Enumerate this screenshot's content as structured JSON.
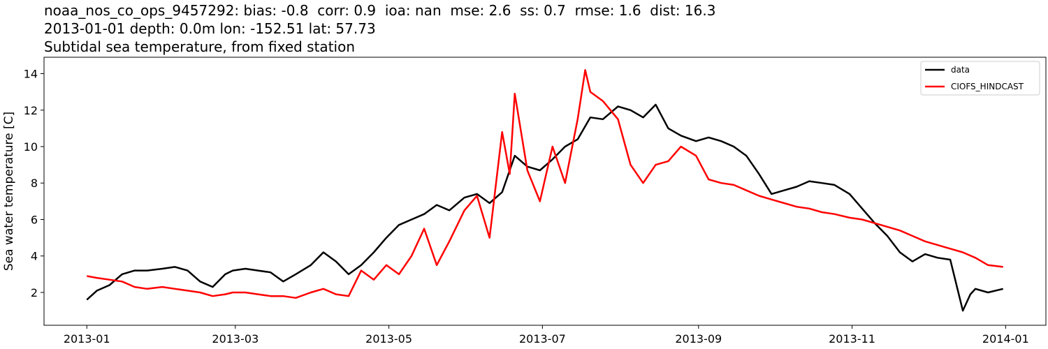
{
  "title_lines": [
    "noaa_nos_co_ops_9457292: bias: -0.8  corr: 0.9  ioa: nan  mse: 2.6  ss: 0.7  rmse: 1.6  dist: 16.3",
    "2013-01-01 depth: 0.0m lon: -152.51 lat: 57.73",
    "Subtidal sea temperature, from fixed station"
  ],
  "chart_data": {
    "type": "line",
    "title": "noaa_nos_co_ops_9457292: bias: -0.8  corr: 0.9  ioa: nan  mse: 2.6  ss: 0.7  rmse: 1.6  dist: 16.3 / 2013-01-01 depth: 0.0m lon: -152.51 lat: 57.73 / Subtidal sea temperature, from fixed station",
    "xlabel": "",
    "ylabel": "Sea water temperature [C]",
    "x_type": "date",
    "xlim": [
      "2012-12-15",
      "2014-01-17"
    ],
    "ylim": [
      0.2,
      14.9
    ],
    "x_ticks": [
      "2013-01",
      "2013-03",
      "2013-05",
      "2013-07",
      "2013-09",
      "2013-11",
      "2014-01"
    ],
    "y_ticks": [
      2,
      4,
      6,
      8,
      10,
      12,
      14
    ],
    "grid": false,
    "legend_position": "top-right",
    "series": [
      {
        "name": "data",
        "color": "#000000",
        "x": [
          "2013-01-01",
          "2013-01-05",
          "2013-01-10",
          "2013-01-15",
          "2013-01-20",
          "2013-01-25",
          "2013-01-31",
          "2013-02-05",
          "2013-02-10",
          "2013-02-15",
          "2013-02-20",
          "2013-02-25",
          "2013-02-28",
          "2013-03-05",
          "2013-03-10",
          "2013-03-15",
          "2013-03-20",
          "2013-03-25",
          "2013-03-31",
          "2013-04-05",
          "2013-04-10",
          "2013-04-15",
          "2013-04-20",
          "2013-04-25",
          "2013-04-30",
          "2013-05-05",
          "2013-05-10",
          "2013-05-15",
          "2013-05-20",
          "2013-05-25",
          "2013-05-31",
          "2013-06-05",
          "2013-06-10",
          "2013-06-15",
          "2013-06-20",
          "2013-06-25",
          "2013-06-30",
          "2013-07-05",
          "2013-07-10",
          "2013-07-15",
          "2013-07-20",
          "2013-07-25",
          "2013-07-31",
          "2013-08-05",
          "2013-08-10",
          "2013-08-15",
          "2013-08-20",
          "2013-08-25",
          "2013-08-31",
          "2013-09-05",
          "2013-09-10",
          "2013-09-15",
          "2013-09-20",
          "2013-09-25",
          "2013-09-30",
          "2013-10-05",
          "2013-10-10",
          "2013-10-15",
          "2013-10-20",
          "2013-10-25",
          "2013-10-31",
          "2013-11-05",
          "2013-11-10",
          "2013-11-15",
          "2013-11-20",
          "2013-11-25",
          "2013-11-30",
          "2013-12-05",
          "2013-12-10",
          "2013-12-15",
          "2013-12-18",
          "2013-12-20",
          "2013-12-25",
          "2013-12-31"
        ],
        "y": [
          1.6,
          2.1,
          2.4,
          3.0,
          3.2,
          3.2,
          3.3,
          3.4,
          3.2,
          2.6,
          2.3,
          3.0,
          3.2,
          3.3,
          3.2,
          3.1,
          2.6,
          3.0,
          3.5,
          4.2,
          3.7,
          3.0,
          3.5,
          4.2,
          5.0,
          5.7,
          6.0,
          6.3,
          6.8,
          6.5,
          7.2,
          7.4,
          6.9,
          7.5,
          9.5,
          8.9,
          8.7,
          9.3,
          10.0,
          10.4,
          11.6,
          11.5,
          12.2,
          12.0,
          11.6,
          12.3,
          11.0,
          10.6,
          10.3,
          10.5,
          10.3,
          10.0,
          9.5,
          8.5,
          7.4,
          7.6,
          7.8,
          8.1,
          8.0,
          7.9,
          7.4,
          6.6,
          5.8,
          5.1,
          4.2,
          3.7,
          4.1,
          3.9,
          3.8,
          1.0,
          1.9,
          2.2,
          2.0,
          2.2
        ]
      },
      {
        "name": "CIOFS_HINDCAST",
        "color": "#ff0000",
        "x": [
          "2013-01-01",
          "2013-01-05",
          "2013-01-10",
          "2013-01-15",
          "2013-01-20",
          "2013-01-25",
          "2013-01-31",
          "2013-02-05",
          "2013-02-10",
          "2013-02-15",
          "2013-02-20",
          "2013-02-25",
          "2013-02-28",
          "2013-03-05",
          "2013-03-10",
          "2013-03-15",
          "2013-03-20",
          "2013-03-25",
          "2013-03-31",
          "2013-04-05",
          "2013-04-10",
          "2013-04-15",
          "2013-04-20",
          "2013-04-25",
          "2013-04-30",
          "2013-05-05",
          "2013-05-10",
          "2013-05-15",
          "2013-05-20",
          "2013-05-25",
          "2013-05-31",
          "2013-06-05",
          "2013-06-10",
          "2013-06-15",
          "2013-06-18",
          "2013-06-20",
          "2013-06-25",
          "2013-06-30",
          "2013-07-05",
          "2013-07-10",
          "2013-07-15",
          "2013-07-18",
          "2013-07-20",
          "2013-07-25",
          "2013-07-31",
          "2013-08-05",
          "2013-08-10",
          "2013-08-15",
          "2013-08-20",
          "2013-08-25",
          "2013-08-31",
          "2013-09-05",
          "2013-09-10",
          "2013-09-15",
          "2013-09-20",
          "2013-09-25",
          "2013-09-30",
          "2013-10-05",
          "2013-10-10",
          "2013-10-15",
          "2013-10-20",
          "2013-10-25",
          "2013-10-31",
          "2013-11-05",
          "2013-11-10",
          "2013-11-15",
          "2013-11-20",
          "2013-11-25",
          "2013-11-30",
          "2013-12-05",
          "2013-12-10",
          "2013-12-15",
          "2013-12-20",
          "2013-12-25",
          "2013-12-31"
        ],
        "y": [
          2.9,
          2.8,
          2.7,
          2.6,
          2.3,
          2.2,
          2.3,
          2.2,
          2.1,
          2.0,
          1.8,
          1.9,
          2.0,
          2.0,
          1.9,
          1.8,
          1.8,
          1.7,
          2.0,
          2.2,
          1.9,
          1.8,
          3.2,
          2.7,
          3.5,
          3.0,
          4.0,
          5.5,
          3.5,
          4.8,
          6.5,
          7.3,
          5.0,
          10.8,
          8.5,
          12.9,
          8.7,
          7.0,
          10.0,
          8.0,
          11.5,
          14.2,
          13.0,
          12.5,
          11.5,
          9.0,
          8.0,
          9.0,
          9.2,
          10.0,
          9.5,
          8.2,
          8.0,
          7.9,
          7.6,
          7.3,
          7.1,
          6.9,
          6.7,
          6.6,
          6.4,
          6.3,
          6.1,
          6.0,
          5.8,
          5.6,
          5.4,
          5.1,
          4.8,
          4.6,
          4.4,
          4.2,
          3.9,
          3.5,
          3.4
        ]
      }
    ]
  }
}
